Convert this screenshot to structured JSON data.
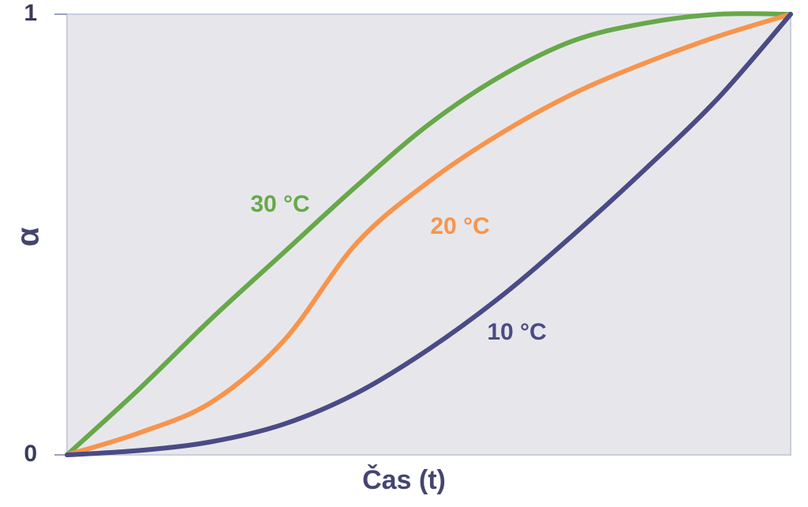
{
  "chart_data": {
    "type": "line",
    "x_label": "Čas (t)",
    "y_label": "α",
    "x": [
      0,
      0.1,
      0.2,
      0.3,
      0.4,
      0.5,
      0.6,
      0.7,
      0.8,
      0.9,
      1
    ],
    "xlim": [
      0,
      1
    ],
    "ylim": [
      0,
      1
    ],
    "yticks": [
      0,
      1
    ],
    "series": [
      {
        "name": "30 °C",
        "color": "#67a84a",
        "values": [
          0,
          0.15,
          0.31,
          0.46,
          0.61,
          0.75,
          0.86,
          0.94,
          0.98,
          1.0,
          1.0
        ]
      },
      {
        "name": "20 °C",
        "color": "#f7944c",
        "values": [
          0,
          0.05,
          0.12,
          0.26,
          0.48,
          0.62,
          0.73,
          0.82,
          0.89,
          0.95,
          1.0
        ]
      },
      {
        "name": "10 °C",
        "color": "#4a4b85",
        "values": [
          0,
          0.01,
          0.03,
          0.07,
          0.14,
          0.24,
          0.36,
          0.5,
          0.65,
          0.81,
          1.0
        ]
      }
    ]
  }
}
